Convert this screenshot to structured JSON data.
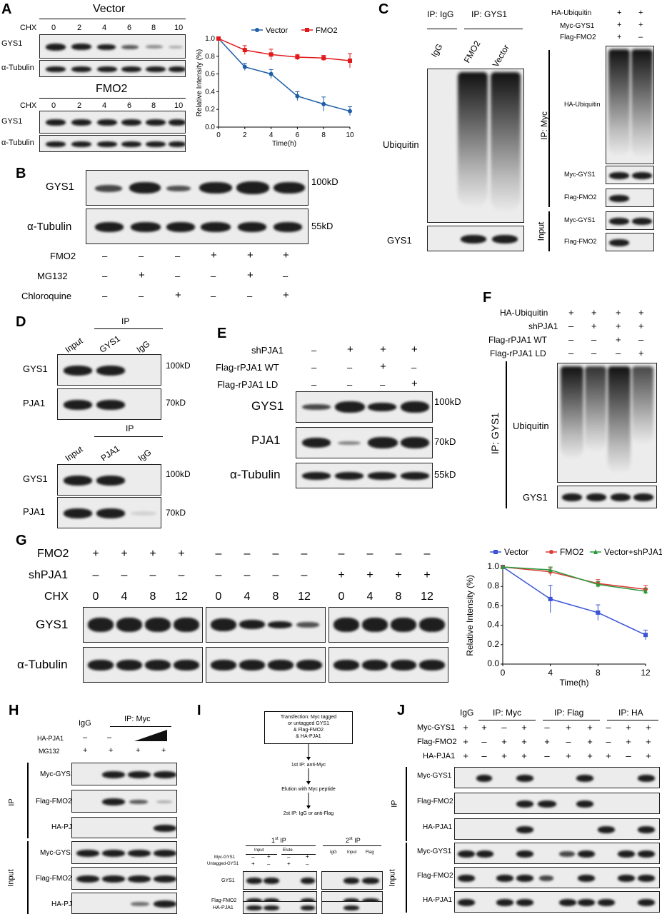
{
  "panels": {
    "A": "A",
    "B": "B",
    "C": "C",
    "D": "D",
    "E": "E",
    "F": "F",
    "G": "G",
    "H": "H",
    "I": "I",
    "J": "J"
  },
  "A": {
    "title_vector": "Vector",
    "title_fmo2": "FMO2",
    "chx": "CHX",
    "times": [
      "0",
      "2",
      "4",
      "6",
      "8",
      "10"
    ],
    "gys1": "GYS1",
    "tubulin": "α-Tubulin"
  },
  "B": {
    "gys1": "GYS1",
    "tubulin": "α-Tubulin",
    "mw1": "100kD",
    "mw2": "55kD",
    "rows": [
      {
        "label": "FMO2",
        "signs": [
          "–",
          "–",
          "–",
          "+",
          "+",
          "+"
        ]
      },
      {
        "label": "MG132",
        "signs": [
          "–",
          "+",
          "–",
          "–",
          "+",
          "–"
        ]
      },
      {
        "label": "Chloroquine",
        "signs": [
          "–",
          "–",
          "+",
          "–",
          "–",
          "+"
        ]
      }
    ]
  },
  "C": {
    "ip_igg": "IP: IgG",
    "ip_gys1": "IP: GYS1",
    "lanes": [
      "IgG",
      "FMO2",
      "Vector"
    ],
    "ubiquitin": "Ubiquitin",
    "gys1": "GYS1",
    "right_rows": [
      {
        "label": "HA-Ubiquitin",
        "signs": [
          "+",
          "+"
        ]
      },
      {
        "label": "Myc-GYS1",
        "signs": [
          "+",
          "+"
        ]
      },
      {
        "label": "Flag-FMO2",
        "signs": [
          "+",
          "–"
        ]
      }
    ],
    "ip_myc": "IP: Myc",
    "input": "Input",
    "blots": [
      "HA-Ubiquitin",
      "Myc-GYS1",
      "Flag-FMO2",
      "Myc-GYS1",
      "Flag-FMO2"
    ]
  },
  "D": {
    "ip": "IP",
    "top_lanes": [
      "Input",
      "GYS1",
      "IgG"
    ],
    "bottom_lanes": [
      "Input",
      "PJA1",
      "IgG"
    ],
    "gys1": "GYS1",
    "pja1": "PJA1",
    "mw1": "100kD",
    "mw2": "70kD"
  },
  "E": {
    "rows": [
      {
        "label": "shPJA1",
        "signs": [
          "–",
          "+",
          "+",
          "+"
        ]
      },
      {
        "label": "Flag-rPJA1 WT",
        "signs": [
          "–",
          "–",
          "+",
          "–"
        ]
      },
      {
        "label": "Flag-rPJA1 LD",
        "signs": [
          "–",
          "–",
          "–",
          "+"
        ]
      }
    ],
    "gys1": "GYS1",
    "pja1": "PJA1",
    "tubulin": "α-Tubulin",
    "mw1": "100kD",
    "mw2": "70kD",
    "mw3": "55kD"
  },
  "F": {
    "rows": [
      {
        "label": "HA-Ubiquitin",
        "signs": [
          "+",
          "+",
          "+",
          "+"
        ]
      },
      {
        "label": "shPJA1",
        "signs": [
          "–",
          "+",
          "+",
          "+"
        ]
      },
      {
        "label": "Flag-rPJA1 WT",
        "signs": [
          "–",
          "–",
          "+",
          "–"
        ]
      },
      {
        "label": "Flag-rPJA1 LD",
        "signs": [
          "–",
          "–",
          "–",
          "+"
        ]
      }
    ],
    "ip": "IP: GYS1",
    "ubiquitin": "Ubiquitin",
    "gys1": "GYS1"
  },
  "G": {
    "fmo2": "FMO2",
    "shpja1": "shPJA1",
    "chx": "CHX",
    "fmo2_signs": [
      "+",
      "+",
      "+",
      "+",
      "–",
      "–",
      "–",
      "–",
      "–",
      "–",
      "–",
      "–"
    ],
    "sh_signs": [
      "–",
      "–",
      "–",
      "–",
      "–",
      "–",
      "–",
      "–",
      "+",
      "+",
      "+",
      "+"
    ],
    "times": [
      "0",
      "4",
      "8",
      "12",
      "0",
      "4",
      "8",
      "12",
      "0",
      "4",
      "8",
      "12"
    ],
    "gys1": "GYS1",
    "tubulin": "α-Tubulin"
  },
  "H": {
    "igg": "IgG",
    "ip_myc": "IP: Myc",
    "ha_pja1": "HA-PJA1",
    "mg132": "MG132",
    "ha_signs": [
      "–",
      "–"
    ],
    "mg_signs": [
      "+",
      "+",
      "+",
      "+"
    ],
    "ip": "IP",
    "input": "Input",
    "blots": [
      "Myc-GYS1",
      "Flag-FMO2",
      "HA-PJA1",
      "Myc-GYS1",
      "Flag-FMO2",
      "HA-PJA1"
    ]
  },
  "I": {
    "box_text": [
      "Transfection: Myc tagged",
      "or untagged GYS1",
      "& Flag-FMO2",
      "& HA-PJA1"
    ],
    "step1": "1st IP: anti-Myc",
    "step2": "Elution with Myc peptide",
    "step3": "2st IP: IgG or anti-Flag",
    "ip1": "1st IP",
    "ip2": "2st IP",
    "ip1_sup": "st",
    "ip2_sup": "st",
    "input": "Input",
    "elute": "Elute",
    "lanes2": [
      "IgG",
      "Input",
      "Flag"
    ],
    "myc_gys1": "Myc-GYS1",
    "untagged": "Untagged-GYS1",
    "myc_signs": [
      "–",
      "+",
      "–",
      "+"
    ],
    "untag_signs": [
      "+",
      "–",
      "+",
      "–"
    ],
    "blots": [
      "GYS1",
      "Flag-FMO2",
      "HA-PJA1"
    ]
  },
  "J": {
    "igg": "IgG",
    "ip_myc": "IP: Myc",
    "ip_flag": "IP: Flag",
    "ip_ha": "IP: HA",
    "rows": [
      {
        "label": "Myc-GYS1",
        "signs": [
          "+",
          "+",
          "–",
          "+",
          "–",
          "+",
          "+",
          "–",
          "+",
          "+"
        ]
      },
      {
        "label": "Flag-FMO2",
        "signs": [
          "+",
          "–",
          "+",
          "+",
          "+",
          "–",
          "+",
          "–",
          "+",
          "+"
        ]
      },
      {
        "label": "HA-PJA1",
        "signs": [
          "+",
          "–",
          "+",
          "+",
          "–",
          "+",
          "+",
          "+",
          "–",
          "+"
        ]
      }
    ],
    "ip": "IP",
    "input": "Input",
    "blots": [
      "Myc-GYS1",
      "Flag-FMO2",
      "HA-PJA1",
      "Myc-GYS1",
      "Flag-FMO2",
      "HA-PJA1"
    ]
  },
  "chart_data": [
    {
      "type": "line",
      "xlabel": "Time(h)",
      "ylabel": "Relative Intensity (%)",
      "xlim": [
        0,
        10
      ],
      "ylim": [
        0,
        1.0
      ],
      "x_ticks": [
        "0",
        "2",
        "4",
        "6",
        "8",
        "10"
      ],
      "y_ticks": [
        "0.0",
        "0.2",
        "0.4",
        "0.6",
        "0.8",
        "1.0"
      ],
      "legend": "top",
      "x": [
        0,
        2,
        4,
        6,
        8,
        10
      ],
      "series": [
        {
          "name": "Vector",
          "color": "#1f5fa8",
          "marker": "circle",
          "values": [
            1.0,
            0.68,
            0.6,
            0.35,
            0.26,
            0.18
          ],
          "err": [
            0,
            0.04,
            0.05,
            0.05,
            0.08,
            0.05
          ]
        },
        {
          "name": "FMO2",
          "color": "#e0191b",
          "marker": "square",
          "values": [
            1.0,
            0.87,
            0.82,
            0.79,
            0.78,
            0.75
          ],
          "err": [
            0,
            0.05,
            0.06,
            0.03,
            0.03,
            0.08
          ]
        }
      ]
    },
    {
      "type": "line",
      "xlabel": "Time(h)",
      "ylabel": "Relative Intensity (%)",
      "xlim": [
        0,
        12
      ],
      "ylim": [
        0,
        1.0
      ],
      "x_ticks": [
        "0",
        "4",
        "8",
        "12"
      ],
      "y_ticks": [
        "0.0",
        "0.2",
        "0.4",
        "0.6",
        "0.8",
        "1.0"
      ],
      "legend": "top",
      "x": [
        0,
        4,
        8,
        12
      ],
      "series": [
        {
          "name": "Vector",
          "color": "#3b53d6",
          "marker": "square",
          "values": [
            1.0,
            0.67,
            0.53,
            0.3
          ],
          "err": [
            0,
            0.14,
            0.08,
            0.05
          ]
        },
        {
          "name": "FMO2",
          "color": "#e03b3b",
          "marker": "circle",
          "values": [
            1.0,
            0.95,
            0.83,
            0.77
          ],
          "err": [
            0,
            0.04,
            0.04,
            0.04
          ]
        },
        {
          "name": "Vector+shPJA1",
          "color": "#2a9a3a",
          "marker": "triangle",
          "values": [
            1.0,
            0.97,
            0.82,
            0.75
          ],
          "err": [
            0,
            0.03,
            0.03,
            0.03
          ]
        }
      ]
    }
  ]
}
